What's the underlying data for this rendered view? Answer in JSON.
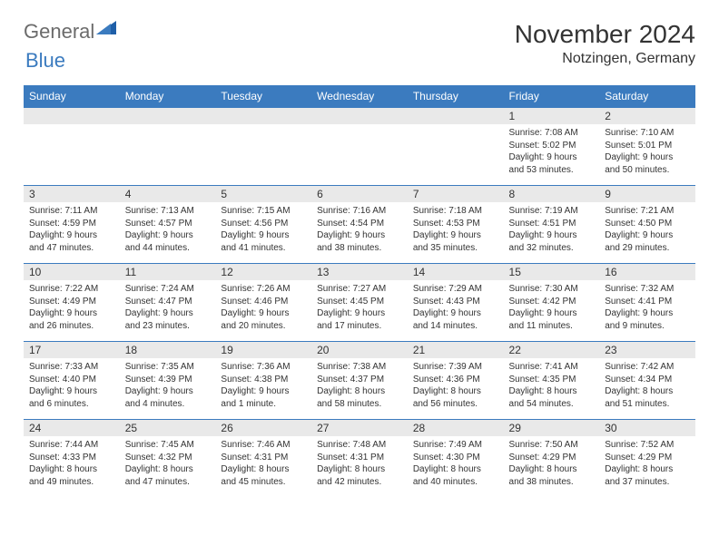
{
  "brand": {
    "part1": "General",
    "part2": "Blue"
  },
  "title": "November 2024",
  "location": "Notzingen, Germany",
  "colors": {
    "header_bg": "#3b7bbf",
    "header_text": "#ffffff",
    "daynum_bg": "#e9e9e9",
    "border": "#3b7bbf",
    "body_text": "#333333",
    "logo_gray": "#6b6b6b",
    "logo_blue": "#3b7bbf",
    "page_bg": "#ffffff"
  },
  "day_headers": [
    "Sunday",
    "Monday",
    "Tuesday",
    "Wednesday",
    "Thursday",
    "Friday",
    "Saturday"
  ],
  "weeks": [
    [
      null,
      null,
      null,
      null,
      null,
      {
        "n": "1",
        "sunrise": "7:08 AM",
        "sunset": "5:02 PM",
        "daylight": "9 hours and 53 minutes."
      },
      {
        "n": "2",
        "sunrise": "7:10 AM",
        "sunset": "5:01 PM",
        "daylight": "9 hours and 50 minutes."
      }
    ],
    [
      {
        "n": "3",
        "sunrise": "7:11 AM",
        "sunset": "4:59 PM",
        "daylight": "9 hours and 47 minutes."
      },
      {
        "n": "4",
        "sunrise": "7:13 AM",
        "sunset": "4:57 PM",
        "daylight": "9 hours and 44 minutes."
      },
      {
        "n": "5",
        "sunrise": "7:15 AM",
        "sunset": "4:56 PM",
        "daylight": "9 hours and 41 minutes."
      },
      {
        "n": "6",
        "sunrise": "7:16 AM",
        "sunset": "4:54 PM",
        "daylight": "9 hours and 38 minutes."
      },
      {
        "n": "7",
        "sunrise": "7:18 AM",
        "sunset": "4:53 PM",
        "daylight": "9 hours and 35 minutes."
      },
      {
        "n": "8",
        "sunrise": "7:19 AM",
        "sunset": "4:51 PM",
        "daylight": "9 hours and 32 minutes."
      },
      {
        "n": "9",
        "sunrise": "7:21 AM",
        "sunset": "4:50 PM",
        "daylight": "9 hours and 29 minutes."
      }
    ],
    [
      {
        "n": "10",
        "sunrise": "7:22 AM",
        "sunset": "4:49 PM",
        "daylight": "9 hours and 26 minutes."
      },
      {
        "n": "11",
        "sunrise": "7:24 AM",
        "sunset": "4:47 PM",
        "daylight": "9 hours and 23 minutes."
      },
      {
        "n": "12",
        "sunrise": "7:26 AM",
        "sunset": "4:46 PM",
        "daylight": "9 hours and 20 minutes."
      },
      {
        "n": "13",
        "sunrise": "7:27 AM",
        "sunset": "4:45 PM",
        "daylight": "9 hours and 17 minutes."
      },
      {
        "n": "14",
        "sunrise": "7:29 AM",
        "sunset": "4:43 PM",
        "daylight": "9 hours and 14 minutes."
      },
      {
        "n": "15",
        "sunrise": "7:30 AM",
        "sunset": "4:42 PM",
        "daylight": "9 hours and 11 minutes."
      },
      {
        "n": "16",
        "sunrise": "7:32 AM",
        "sunset": "4:41 PM",
        "daylight": "9 hours and 9 minutes."
      }
    ],
    [
      {
        "n": "17",
        "sunrise": "7:33 AM",
        "sunset": "4:40 PM",
        "daylight": "9 hours and 6 minutes."
      },
      {
        "n": "18",
        "sunrise": "7:35 AM",
        "sunset": "4:39 PM",
        "daylight": "9 hours and 4 minutes."
      },
      {
        "n": "19",
        "sunrise": "7:36 AM",
        "sunset": "4:38 PM",
        "daylight": "9 hours and 1 minute."
      },
      {
        "n": "20",
        "sunrise": "7:38 AM",
        "sunset": "4:37 PM",
        "daylight": "8 hours and 58 minutes."
      },
      {
        "n": "21",
        "sunrise": "7:39 AM",
        "sunset": "4:36 PM",
        "daylight": "8 hours and 56 minutes."
      },
      {
        "n": "22",
        "sunrise": "7:41 AM",
        "sunset": "4:35 PM",
        "daylight": "8 hours and 54 minutes."
      },
      {
        "n": "23",
        "sunrise": "7:42 AM",
        "sunset": "4:34 PM",
        "daylight": "8 hours and 51 minutes."
      }
    ],
    [
      {
        "n": "24",
        "sunrise": "7:44 AM",
        "sunset": "4:33 PM",
        "daylight": "8 hours and 49 minutes."
      },
      {
        "n": "25",
        "sunrise": "7:45 AM",
        "sunset": "4:32 PM",
        "daylight": "8 hours and 47 minutes."
      },
      {
        "n": "26",
        "sunrise": "7:46 AM",
        "sunset": "4:31 PM",
        "daylight": "8 hours and 45 minutes."
      },
      {
        "n": "27",
        "sunrise": "7:48 AM",
        "sunset": "4:31 PM",
        "daylight": "8 hours and 42 minutes."
      },
      {
        "n": "28",
        "sunrise": "7:49 AM",
        "sunset": "4:30 PM",
        "daylight": "8 hours and 40 minutes."
      },
      {
        "n": "29",
        "sunrise": "7:50 AM",
        "sunset": "4:29 PM",
        "daylight": "8 hours and 38 minutes."
      },
      {
        "n": "30",
        "sunrise": "7:52 AM",
        "sunset": "4:29 PM",
        "daylight": "8 hours and 37 minutes."
      }
    ]
  ],
  "labels": {
    "sunrise": "Sunrise:",
    "sunset": "Sunset:",
    "daylight": "Daylight:"
  }
}
